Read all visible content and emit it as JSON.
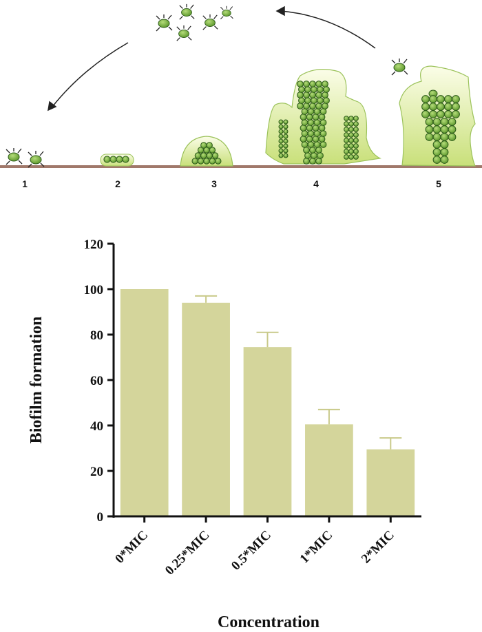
{
  "diagram": {
    "stages": [
      "1",
      "2",
      "3",
      "4",
      "5"
    ],
    "colors": {
      "surface": "#a0786a",
      "cell": "#7bb247",
      "cell_dark": "#2d5a1b",
      "matrix": "#e9f2b5",
      "matrix_edge": "#9bc25a"
    },
    "icons": [
      "planktonic-bacteria-icon",
      "attachment-icon",
      "microcolony-icon",
      "maturation-icon",
      "dispersal-icon",
      "cycle-arrow-icon"
    ]
  },
  "chart_data": {
    "type": "bar",
    "categories": [
      "0*MIC",
      "0.25*MIC",
      "0.5*MIC",
      "1*MIC",
      "2*MIC"
    ],
    "values": [
      100,
      94,
      74.5,
      40.5,
      29.5
    ],
    "errors": [
      0,
      3,
      6.5,
      6.5,
      5
    ],
    "title": "",
    "xlabel": "Concentration",
    "ylabel": "Biofilm formation",
    "ylim": [
      0,
      120
    ],
    "yticks": [
      0,
      20,
      40,
      60,
      80,
      100,
      120
    ],
    "bar_color": "#d4d59b",
    "error_color": "#c9ca8a",
    "grid": false
  }
}
